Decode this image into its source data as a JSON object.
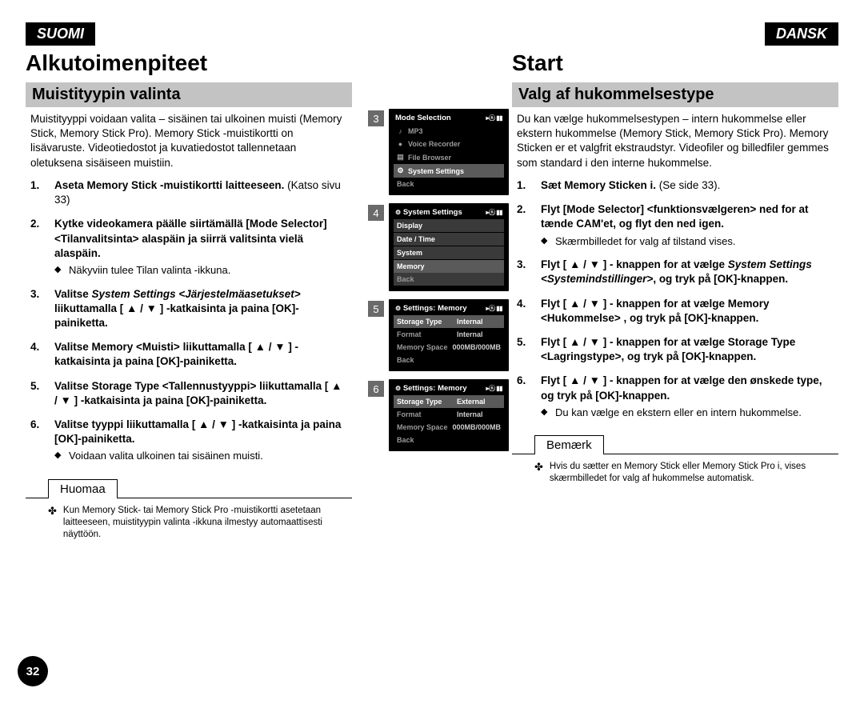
{
  "page_number": "32",
  "left": {
    "lang": "SUOMI",
    "title": "Alkutoimenpiteet",
    "subtitle": "Muistityypin valinta",
    "intro": "Muistityyppi voidaan valita – sisäinen tai ulkoinen muisti (Memory Stick, Memory Stick Pro). Memory Stick -muistikortti on lisävaruste. Videotiedostot ja kuvatiedostot tallennetaan oletuksena sisäiseen muistiin.",
    "steps": [
      {
        "bold": "Aseta Memory Stick -muistikortti laitteeseen.",
        "tail": " (Katso sivu 33)"
      },
      {
        "bold": "Kytke videokamera päälle siirtämällä [Mode Selector] <Tilanvalitsinta> alaspäin ja siirrä valitsinta vielä alaspäin.",
        "bullet": "Näkyviin tulee Tilan valinta -ikkuna."
      },
      {
        "bold_pre": "Valitse ",
        "italic": "System Settings <Järjestelmäasetukset>",
        "bold_post": " liikuttamalla [ ▲ / ▼ ] -katkaisinta ja paina [OK]-painiketta."
      },
      {
        "bold": "Valitse Memory <Muisti> liikuttamalla [ ▲ / ▼ ] -katkaisinta ja paina [OK]-painiketta."
      },
      {
        "bold": "Valitse Storage Type <Tallennustyyppi> liikuttamalla [ ▲ / ▼ ] -katkaisinta ja paina [OK]-painiketta."
      },
      {
        "bold": "Valitse tyyppi liikuttamalla [ ▲ / ▼ ] -katkaisinta ja paina [OK]-painiketta.",
        "bullet": "Voidaan valita ulkoinen tai sisäinen muisti."
      }
    ],
    "note_label": "Huomaa",
    "footnote": "Kun Memory Stick- tai Memory Stick Pro -muistikortti asetetaan laitteeseen, muistityypin valinta -ikkuna ilmestyy automaattisesti näyttöön."
  },
  "right": {
    "lang": "DANSK",
    "title": "Start",
    "subtitle": "Valg af hukommelsestype",
    "intro": "Du kan vælge hukommelsestypen – intern hukommelse eller ekstern hukommelse (Memory Stick, Memory Stick Pro). Memory Sticken er et valgfrit ekstraudstyr. Videofiler og billedfiler gemmes som standard i den interne hukommelse.",
    "steps": [
      {
        "bold": "Sæt Memory Sticken i.",
        "tail": " (Se side 33)."
      },
      {
        "bold": "Flyt [Mode Selector] <funktionsvælgeren> ned for at tænde CAM'et, og flyt den ned igen.",
        "bullet": "Skærmbilledet for valg af tilstand vises."
      },
      {
        "bold_pre": "Flyt [ ▲ / ▼ ] - knappen for at vælge ",
        "italic": "System Settings <Systemindstillinger>",
        "bold_post": ", og tryk på [OK]-knappen."
      },
      {
        "bold": "Flyt [ ▲ / ▼ ] - knappen for at vælge Memory <Hukommelse> , og tryk på [OK]-knappen."
      },
      {
        "bold": "Flyt [ ▲ / ▼ ] - knappen for at vælge Storage Type <Lagringstype>, og tryk på [OK]-knappen."
      },
      {
        "bold": "Flyt [ ▲ / ▼ ] - knappen for at vælge den ønskede type, og tryk på [OK]-knappen.",
        "bullet": "Du kan vælge en ekstern eller en intern hukommelse."
      }
    ],
    "note_label": "Bemærk",
    "footnote": "Hvis du sætter en Memory Stick eller Memory Stick Pro i, vises skærmbilledet for valg af hukommelse automatisk."
  },
  "figures": {
    "f3": {
      "num": "3",
      "title": "Mode Selection",
      "rows": [
        {
          "icon": "♪",
          "label": "MP3"
        },
        {
          "icon": "●",
          "label": "Voice Recorder"
        },
        {
          "icon": "▤",
          "label": "File Browser"
        },
        {
          "icon": "⚙",
          "label": "System Settings",
          "sel": true
        },
        {
          "icon": "",
          "label": "Back"
        }
      ]
    },
    "f4": {
      "num": "4",
      "title": "System Settings",
      "rows": [
        {
          "label": "Display"
        },
        {
          "label": "Date / Time"
        },
        {
          "label": "System"
        },
        {
          "label": "Memory",
          "sel": true
        },
        {
          "label": "Back"
        }
      ]
    },
    "f5": {
      "num": "5",
      "title": "Settings: Memory",
      "rows": [
        {
          "k": "Storage Type",
          "v": "Internal",
          "sel": true
        },
        {
          "k": "Format",
          "v": "Internal"
        },
        {
          "k": "Memory Space",
          "v": "000MB/000MB"
        },
        {
          "k": "Back",
          "v": ""
        }
      ]
    },
    "f6": {
      "num": "6",
      "title": "Settings: Memory",
      "rows": [
        {
          "k": "Storage Type",
          "v": "External",
          "sel": true
        },
        {
          "k": "Format",
          "v": "Internal"
        },
        {
          "k": "Memory Space",
          "v": "000MB/000MB"
        },
        {
          "k": "Back",
          "v": ""
        }
      ]
    },
    "status_icons": "▸ⓝ ▮▮"
  }
}
